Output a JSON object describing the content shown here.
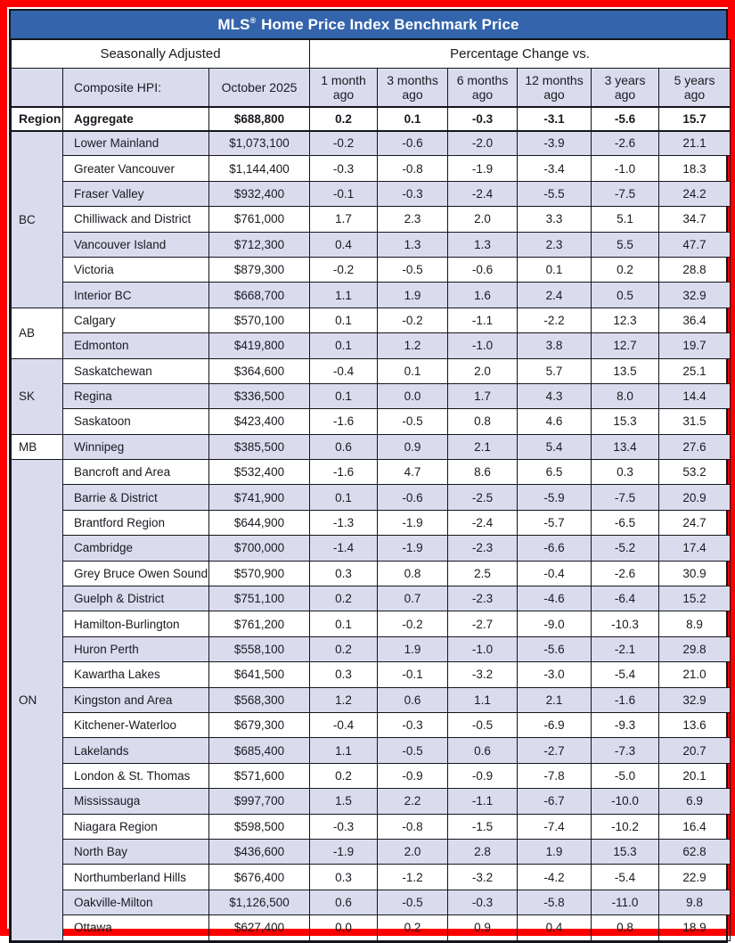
{
  "colors": {
    "frame_red": "#fe0000",
    "title_blue": "#3465ac",
    "row_alt_lavender": "#dadcee",
    "border_dark": "#14151c",
    "title_text": "#ffffff"
  },
  "chart_data": {
    "type": "table",
    "title_prefix": "MLS",
    "title_reg": "®",
    "title_rest": " Home Price Index Benchmark Price",
    "title_full": "MLS® Home Price Index Benchmark Price",
    "header_groups": {
      "left": "Seasonally Adjusted",
      "right": "Percentage Change vs."
    },
    "columns": [
      "",
      "Composite HPI:",
      "October 2025",
      "1 month ago",
      "3 months ago",
      "6 months ago",
      "12 months ago",
      "3 years ago",
      "5 years ago"
    ],
    "aggregate": {
      "region_label": "Region",
      "name": "Aggregate",
      "price": "$688,800",
      "changes": [
        "0.2",
        "0.1",
        "-0.3",
        "-3.1",
        "-5.6",
        "15.7"
      ]
    },
    "groups": [
      {
        "region": "BC",
        "rows": [
          {
            "name": "Lower Mainland",
            "price": "$1,073,100",
            "changes": [
              "-0.2",
              "-0.6",
              "-2.0",
              "-3.9",
              "-2.6",
              "21.1"
            ]
          },
          {
            "name": "Greater Vancouver",
            "price": "$1,144,400",
            "changes": [
              "-0.3",
              "-0.8",
              "-1.9",
              "-3.4",
              "-1.0",
              "18.3"
            ]
          },
          {
            "name": "Fraser Valley",
            "price": "$932,400",
            "changes": [
              "-0.1",
              "-0.3",
              "-2.4",
              "-5.5",
              "-7.5",
              "24.2"
            ]
          },
          {
            "name": "Chilliwack and District",
            "price": "$761,000",
            "changes": [
              "1.7",
              "2.3",
              "2.0",
              "3.3",
              "5.1",
              "34.7"
            ]
          },
          {
            "name": "Vancouver Island",
            "price": "$712,300",
            "changes": [
              "0.4",
              "1.3",
              "1.3",
              "2.3",
              "5.5",
              "47.7"
            ]
          },
          {
            "name": "Victoria",
            "price": "$879,300",
            "changes": [
              "-0.2",
              "-0.5",
              "-0.6",
              "0.1",
              "0.2",
              "28.8"
            ]
          },
          {
            "name": "Interior BC",
            "price": "$668,700",
            "changes": [
              "1.1",
              "1.9",
              "1.6",
              "2.4",
              "0.5",
              "32.9"
            ]
          }
        ]
      },
      {
        "region": "AB",
        "rows": [
          {
            "name": "Calgary",
            "price": "$570,100",
            "changes": [
              "0.1",
              "-0.2",
              "-1.1",
              "-2.2",
              "12.3",
              "36.4"
            ]
          },
          {
            "name": "Edmonton",
            "price": "$419,800",
            "changes": [
              "0.1",
              "1.2",
              "-1.0",
              "3.8",
              "12.7",
              "19.7"
            ]
          }
        ]
      },
      {
        "region": "SK",
        "rows": [
          {
            "name": "Saskatchewan",
            "price": "$364,600",
            "changes": [
              "-0.4",
              "0.1",
              "2.0",
              "5.7",
              "13.5",
              "25.1"
            ]
          },
          {
            "name": "Regina",
            "price": "$336,500",
            "changes": [
              "0.1",
              "0.0",
              "1.7",
              "4.3",
              "8.0",
              "14.4"
            ]
          },
          {
            "name": "Saskatoon",
            "price": "$423,400",
            "changes": [
              "-1.6",
              "-0.5",
              "0.8",
              "4.6",
              "15.3",
              "31.5"
            ]
          }
        ]
      },
      {
        "region": "MB",
        "rows": [
          {
            "name": "Winnipeg",
            "price": "$385,500",
            "changes": [
              "0.6",
              "0.9",
              "2.1",
              "5.4",
              "13.4",
              "27.6"
            ]
          }
        ]
      },
      {
        "region": "ON",
        "rows": [
          {
            "name": "Bancroft and Area",
            "price": "$532,400",
            "changes": [
              "-1.6",
              "4.7",
              "8.6",
              "6.5",
              "0.3",
              "53.2"
            ]
          },
          {
            "name": "Barrie & District",
            "price": "$741,900",
            "changes": [
              "0.1",
              "-0.6",
              "-2.5",
              "-5.9",
              "-7.5",
              "20.9"
            ]
          },
          {
            "name": "Brantford Region",
            "price": "$644,900",
            "changes": [
              "-1.3",
              "-1.9",
              "-2.4",
              "-5.7",
              "-6.5",
              "24.7"
            ]
          },
          {
            "name": "Cambridge",
            "price": "$700,000",
            "changes": [
              "-1.4",
              "-1.9",
              "-2.3",
              "-6.6",
              "-5.2",
              "17.4"
            ]
          },
          {
            "name": "Grey Bruce Owen Sound",
            "price": "$570,900",
            "changes": [
              "0.3",
              "0.8",
              "2.5",
              "-0.4",
              "-2.6",
              "30.9"
            ]
          },
          {
            "name": "Guelph & District",
            "price": "$751,100",
            "changes": [
              "0.2",
              "0.7",
              "-2.3",
              "-4.6",
              "-6.4",
              "15.2"
            ]
          },
          {
            "name": "Hamilton-Burlington",
            "price": "$761,200",
            "changes": [
              "0.1",
              "-0.2",
              "-2.7",
              "-9.0",
              "-10.3",
              "8.9"
            ]
          },
          {
            "name": "Huron Perth",
            "price": "$558,100",
            "changes": [
              "0.2",
              "1.9",
              "-1.0",
              "-5.6",
              "-2.1",
              "29.8"
            ]
          },
          {
            "name": "Kawartha Lakes",
            "price": "$641,500",
            "changes": [
              "0.3",
              "-0.1",
              "-3.2",
              "-3.0",
              "-5.4",
              "21.0"
            ]
          },
          {
            "name": "Kingston and Area",
            "price": "$568,300",
            "changes": [
              "1.2",
              "0.6",
              "1.1",
              "2.1",
              "-1.6",
              "32.9"
            ]
          },
          {
            "name": "Kitchener-Waterloo",
            "price": "$679,300",
            "changes": [
              "-0.4",
              "-0.3",
              "-0.5",
              "-6.9",
              "-9.3",
              "13.6"
            ]
          },
          {
            "name": "Lakelands",
            "price": "$685,400",
            "changes": [
              "1.1",
              "-0.5",
              "0.6",
              "-2.7",
              "-7.3",
              "20.7"
            ]
          },
          {
            "name": "London & St. Thomas",
            "price": "$571,600",
            "changes": [
              "0.2",
              "-0.9",
              "-0.9",
              "-7.8",
              "-5.0",
              "20.1"
            ]
          },
          {
            "name": "Mississauga",
            "price": "$997,700",
            "changes": [
              "1.5",
              "2.2",
              "-1.1",
              "-6.7",
              "-10.0",
              "6.9"
            ]
          },
          {
            "name": "Niagara Region",
            "price": "$598,500",
            "changes": [
              "-0.3",
              "-0.8",
              "-1.5",
              "-7.4",
              "-10.2",
              "16.4"
            ]
          },
          {
            "name": "North Bay",
            "price": "$436,600",
            "changes": [
              "-1.9",
              "2.0",
              "2.8",
              "1.9",
              "15.3",
              "62.8"
            ]
          },
          {
            "name": "Northumberland Hills",
            "price": "$676,400",
            "changes": [
              "0.3",
              "-1.2",
              "-3.2",
              "-4.2",
              "-5.4",
              "22.9"
            ]
          },
          {
            "name": "Oakville-Milton",
            "price": "$1,126,500",
            "changes": [
              "0.6",
              "-0.5",
              "-0.3",
              "-5.8",
              "-11.0",
              "9.8"
            ]
          },
          {
            "name": "Ottawa",
            "price": "$627,400",
            "changes": [
              "0.0",
              "0.2",
              "0.9",
              "0.4",
              "0.8",
              "18.9"
            ]
          }
        ]
      }
    ]
  }
}
